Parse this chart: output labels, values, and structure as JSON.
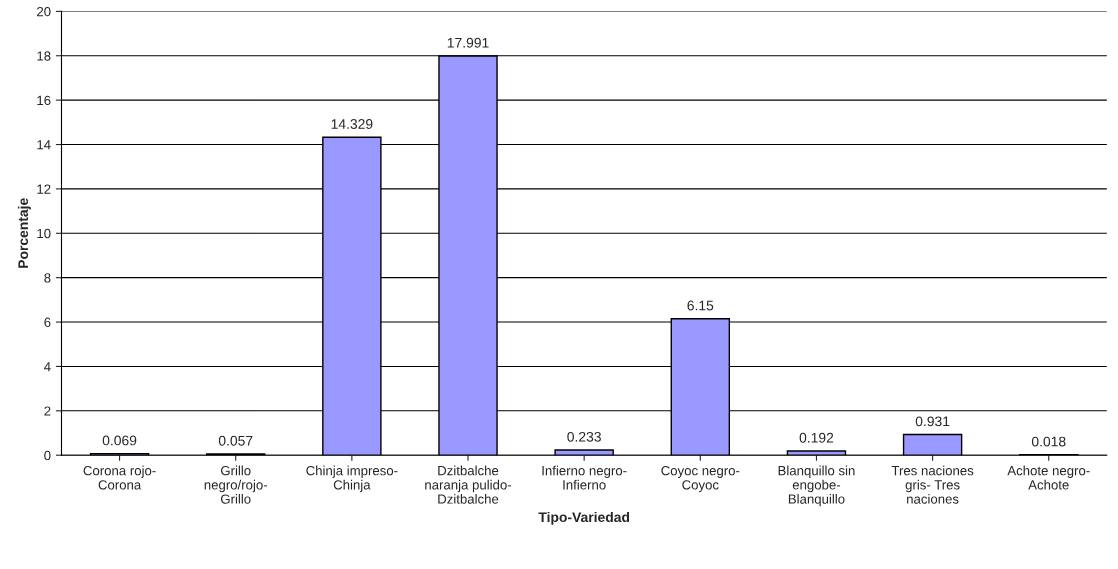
{
  "chart_data": {
    "type": "bar",
    "xlabel": "Tipo-Variedad",
    "ylabel": "Porcentaje",
    "categories": [
      "Corona rojo-\nCorona",
      "Grillo\nnegro/rojo-\nGrillo",
      "Chinja impreso-\nChinja",
      "Dzitbalche\nnaranja pulido-\nDzitbalche",
      "Infierno negro-\nInfierno",
      "Coyoc negro-\nCoyoc",
      "Blanquillo sin\nengobe-\nBlanquillo",
      "Tres naciones\ngris- Tres\nnaciones",
      "Achote negro-\nAchote"
    ],
    "values": [
      0.069,
      0.057,
      14.329,
      17.991,
      0.233,
      6.15,
      0.192,
      0.931,
      0.018
    ],
    "color": "#9999ff",
    "ylim": [
      0,
      20
    ],
    "yticks": [
      0,
      2,
      4,
      6,
      8,
      10,
      12,
      14,
      16,
      18,
      20
    ],
    "grid": "y",
    "data_labels": true
  }
}
